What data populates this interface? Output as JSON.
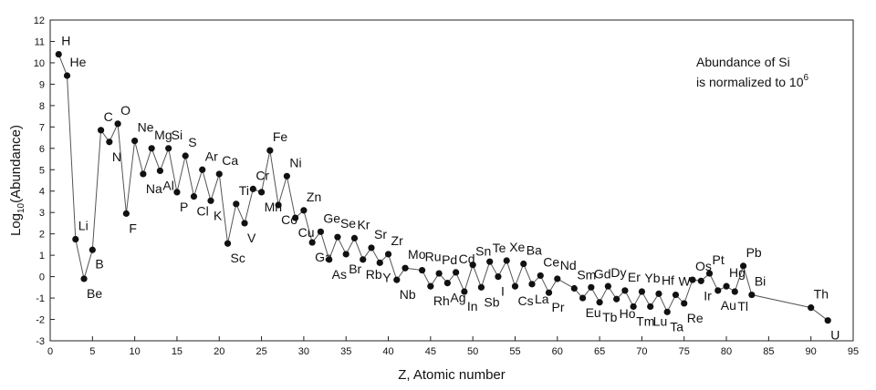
{
  "chart_data": {
    "type": "line",
    "title": "",
    "xlabel": "Z, Atomic number",
    "ylabel_base": "Log",
    "ylabel_sub": "10",
    "ylabel_rest": "(Abundance)",
    "xlim": [
      0,
      95
    ],
    "ylim": [
      -3,
      12
    ],
    "xticks": [
      0,
      5,
      10,
      15,
      20,
      25,
      30,
      35,
      40,
      45,
      50,
      55,
      60,
      65,
      70,
      75,
      80,
      85,
      90,
      95
    ],
    "yticks": [
      -3,
      -2,
      -1,
      0,
      1,
      2,
      3,
      4,
      5,
      6,
      7,
      8,
      9,
      10,
      11,
      12
    ],
    "grid": false,
    "annotation_line1": "Abundance of Si",
    "annotation_line2": "is normalized to 10",
    "annotation_sup": "6",
    "points": [
      {
        "z": 1,
        "y": 10.4,
        "label": "H"
      },
      {
        "z": 2,
        "y": 9.4,
        "label": "He"
      },
      {
        "z": 3,
        "y": 1.75,
        "label": "Li"
      },
      {
        "z": 4,
        "y": -0.1,
        "label": "Be"
      },
      {
        "z": 5,
        "y": 1.25,
        "label": "B"
      },
      {
        "z": 6,
        "y": 6.85,
        "label": "C"
      },
      {
        "z": 7,
        "y": 6.3,
        "label": "N"
      },
      {
        "z": 8,
        "y": 7.15,
        "label": "O"
      },
      {
        "z": 9,
        "y": 2.95,
        "label": "F"
      },
      {
        "z": 10,
        "y": 6.35,
        "label": "Ne"
      },
      {
        "z": 11,
        "y": 4.8,
        "label": "Na"
      },
      {
        "z": 12,
        "y": 6.0,
        "label": "Mg"
      },
      {
        "z": 13,
        "y": 4.95,
        "label": "Al"
      },
      {
        "z": 14,
        "y": 6.0,
        "label": "Si"
      },
      {
        "z": 15,
        "y": 3.95,
        "label": "P"
      },
      {
        "z": 16,
        "y": 5.65,
        "label": "S"
      },
      {
        "z": 17,
        "y": 3.75,
        "label": "Cl"
      },
      {
        "z": 18,
        "y": 5.0,
        "label": "Ar"
      },
      {
        "z": 19,
        "y": 3.55,
        "label": "K"
      },
      {
        "z": 20,
        "y": 4.8,
        "label": "Ca"
      },
      {
        "z": 21,
        "y": 1.55,
        "label": "Sc"
      },
      {
        "z": 22,
        "y": 3.4,
        "label": "Ti"
      },
      {
        "z": 23,
        "y": 2.5,
        "label": "V"
      },
      {
        "z": 24,
        "y": 4.1,
        "label": "Cr"
      },
      {
        "z": 25,
        "y": 3.95,
        "label": "Mn"
      },
      {
        "z": 26,
        "y": 5.9,
        "label": "Fe"
      },
      {
        "z": 27,
        "y": 3.35,
        "label": "Co"
      },
      {
        "z": 28,
        "y": 4.7,
        "label": "Ni"
      },
      {
        "z": 29,
        "y": 2.75,
        "label": "Cu"
      },
      {
        "z": 30,
        "y": 3.1,
        "label": "Zn"
      },
      {
        "z": 31,
        "y": 1.6,
        "label": "Ga"
      },
      {
        "z": 32,
        "y": 2.1,
        "label": "Ge"
      },
      {
        "z": 33,
        "y": 0.8,
        "label": "As"
      },
      {
        "z": 34,
        "y": 1.85,
        "label": "Se"
      },
      {
        "z": 35,
        "y": 1.05,
        "label": "Br"
      },
      {
        "z": 36,
        "y": 1.8,
        "label": "Kr"
      },
      {
        "z": 37,
        "y": 0.8,
        "label": "Rb"
      },
      {
        "z": 38,
        "y": 1.35,
        "label": "Sr"
      },
      {
        "z": 39,
        "y": 0.65,
        "label": "Y"
      },
      {
        "z": 40,
        "y": 1.05,
        "label": "Zr"
      },
      {
        "z": 41,
        "y": -0.15,
        "label": "Nb"
      },
      {
        "z": 42,
        "y": 0.4,
        "label": "Mo"
      },
      {
        "z": 44,
        "y": 0.3,
        "label": "Ru"
      },
      {
        "z": 45,
        "y": -0.45,
        "label": "Rh"
      },
      {
        "z": 46,
        "y": 0.15,
        "label": "Pd"
      },
      {
        "z": 47,
        "y": -0.3,
        "label": "Ag"
      },
      {
        "z": 48,
        "y": 0.2,
        "label": "Cd"
      },
      {
        "z": 49,
        "y": -0.7,
        "label": "In"
      },
      {
        "z": 50,
        "y": 0.55,
        "label": "Sn"
      },
      {
        "z": 51,
        "y": -0.5,
        "label": "Sb"
      },
      {
        "z": 52,
        "y": 0.7,
        "label": "Te"
      },
      {
        "z": 53,
        "y": 0.0,
        "label": "I"
      },
      {
        "z": 54,
        "y": 0.75,
        "label": "Xe"
      },
      {
        "z": 55,
        "y": -0.45,
        "label": "Cs"
      },
      {
        "z": 56,
        "y": 0.6,
        "label": "Ba"
      },
      {
        "z": 57,
        "y": -0.35,
        "label": "La"
      },
      {
        "z": 58,
        "y": 0.05,
        "label": "Ce"
      },
      {
        "z": 59,
        "y": -0.75,
        "label": "Pr"
      },
      {
        "z": 60,
        "y": -0.1,
        "label": "Nd"
      },
      {
        "z": 62,
        "y": -0.55,
        "label": "Sm"
      },
      {
        "z": 63,
        "y": -1.0,
        "label": "Eu"
      },
      {
        "z": 64,
        "y": -0.5,
        "label": "Gd"
      },
      {
        "z": 65,
        "y": -1.2,
        "label": "Tb"
      },
      {
        "z": 66,
        "y": -0.45,
        "label": "Dy"
      },
      {
        "z": 67,
        "y": -1.05,
        "label": "Ho"
      },
      {
        "z": 68,
        "y": -0.65,
        "label": "Er"
      },
      {
        "z": 69,
        "y": -1.4,
        "label": "Tm"
      },
      {
        "z": 70,
        "y": -0.7,
        "label": "Yb"
      },
      {
        "z": 71,
        "y": -1.4,
        "label": "Lu"
      },
      {
        "z": 72,
        "y": -0.8,
        "label": "Hf"
      },
      {
        "z": 73,
        "y": -1.65,
        "label": "Ta"
      },
      {
        "z": 74,
        "y": -0.85,
        "label": "W"
      },
      {
        "z": 75,
        "y": -1.25,
        "label": "Re"
      },
      {
        "z": 76,
        "y": -0.15,
        "label": "Os"
      },
      {
        "z": 77,
        "y": -0.2,
        "label": "Ir"
      },
      {
        "z": 78,
        "y": 0.15,
        "label": "Pt"
      },
      {
        "z": 79,
        "y": -0.65,
        "label": "Au"
      },
      {
        "z": 80,
        "y": -0.45,
        "label": "Hg"
      },
      {
        "z": 81,
        "y": -0.7,
        "label": "Tl"
      },
      {
        "z": 82,
        "y": 0.5,
        "label": "Pb"
      },
      {
        "z": 83,
        "y": -0.85,
        "label": "Bi"
      },
      {
        "z": 90,
        "y": -1.45,
        "label": "Th"
      },
      {
        "z": 92,
        "y": -2.05,
        "label": "U"
      }
    ]
  }
}
